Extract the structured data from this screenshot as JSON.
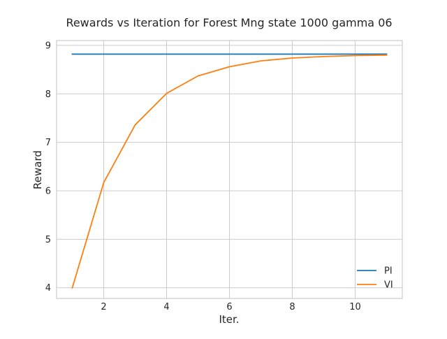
{
  "chart_data": {
    "type": "line",
    "title": "Rewards vs Iteration for Forest Mng state 1000 gamma 06",
    "xlabel": "Iter.",
    "ylabel": "Reward",
    "xlim": [
      0.5,
      11.5
    ],
    "ylim": [
      3.78,
      9.1
    ],
    "x_ticks": [
      2,
      4,
      6,
      8,
      10
    ],
    "y_ticks": [
      4,
      5,
      6,
      7,
      8,
      9
    ],
    "grid": true,
    "legend_position": "lower-right",
    "series": [
      {
        "name": "PI",
        "color": "#1f77b4",
        "x": [
          1,
          2,
          3,
          4,
          5,
          6,
          7,
          8,
          9,
          10,
          11
        ],
        "values": [
          8.82,
          8.82,
          8.82,
          8.82,
          8.82,
          8.82,
          8.82,
          8.82,
          8.82,
          8.82,
          8.82
        ]
      },
      {
        "name": "VI",
        "color": "#ff7f0e",
        "x": [
          1,
          2,
          3,
          4,
          5,
          6,
          7,
          8,
          9,
          10,
          11
        ],
        "values": [
          4.0,
          6.17,
          7.36,
          8.01,
          8.37,
          8.56,
          8.68,
          8.74,
          8.77,
          8.79,
          8.8
        ]
      }
    ]
  }
}
